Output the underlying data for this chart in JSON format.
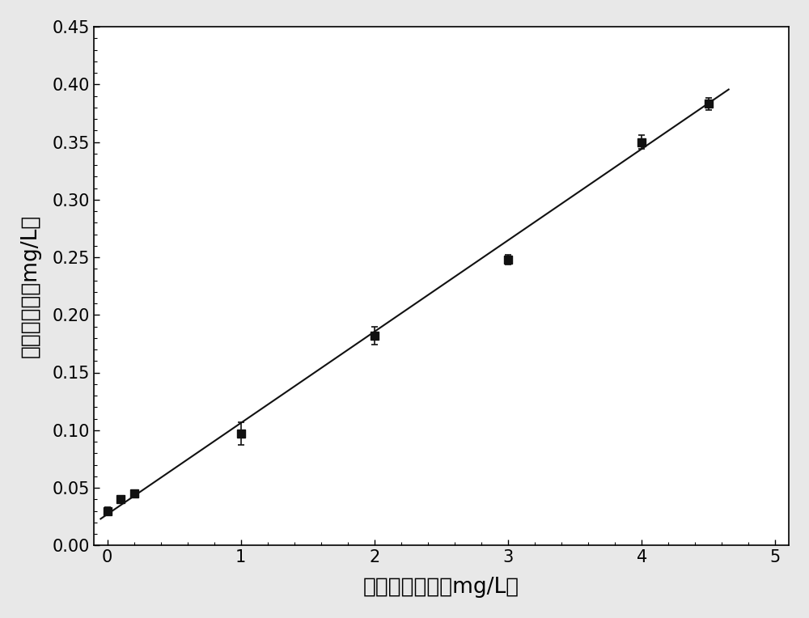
{
  "x_data": [
    0.0,
    0.1,
    0.2,
    1.0,
    2.0,
    3.0,
    4.0,
    4.5
  ],
  "y_data": [
    0.03,
    0.04,
    0.045,
    0.097,
    0.182,
    0.248,
    0.35,
    0.383
  ],
  "y_err": [
    0.003,
    0.003,
    0.003,
    0.01,
    0.008,
    0.004,
    0.006,
    0.005
  ],
  "fit_x": [
    -0.05,
    4.65
  ],
  "fit_slope": 0.07926,
  "fit_intercept": 0.027,
  "xlabel": "三氯乙烯浓度（mg/L）",
  "ylabel": "氯离子浓度（mg/L）",
  "xlim": [
    -0.1,
    5.1
  ],
  "ylim": [
    0.0,
    0.45
  ],
  "xticks": [
    0,
    1,
    2,
    3,
    4,
    5
  ],
  "yticks": [
    0.0,
    0.05,
    0.1,
    0.15,
    0.2,
    0.25,
    0.3,
    0.35,
    0.4,
    0.45
  ],
  "marker_color": "#111111",
  "line_color": "#111111",
  "bg_color": "#ffffff",
  "outer_bg": "#e8e8e8",
  "marker_size": 7,
  "line_width": 1.5,
  "xlabel_fontsize": 19,
  "ylabel_fontsize": 19,
  "tick_fontsize": 15
}
